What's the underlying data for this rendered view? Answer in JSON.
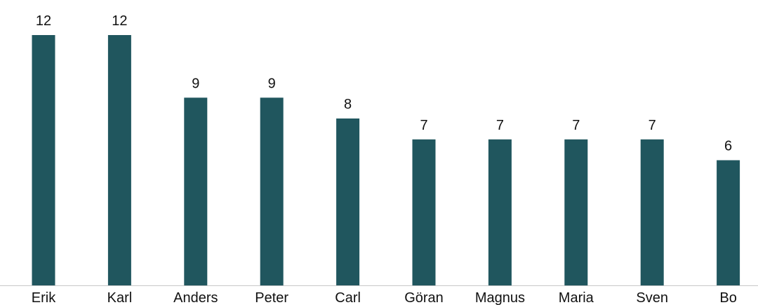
{
  "chart_data": {
    "type": "bar",
    "categories": [
      "Erik",
      "Karl",
      "Anders",
      "Peter",
      "Carl",
      "Göran",
      "Magnus",
      "Maria",
      "Sven",
      "Bo"
    ],
    "values": [
      12,
      12,
      9,
      9,
      8,
      7,
      7,
      7,
      7,
      6
    ],
    "ylim": [
      0,
      12
    ],
    "grid": false,
    "data_labels": true,
    "colors": {
      "bar": "#20565e",
      "axis": "#c8c8c8"
    }
  }
}
